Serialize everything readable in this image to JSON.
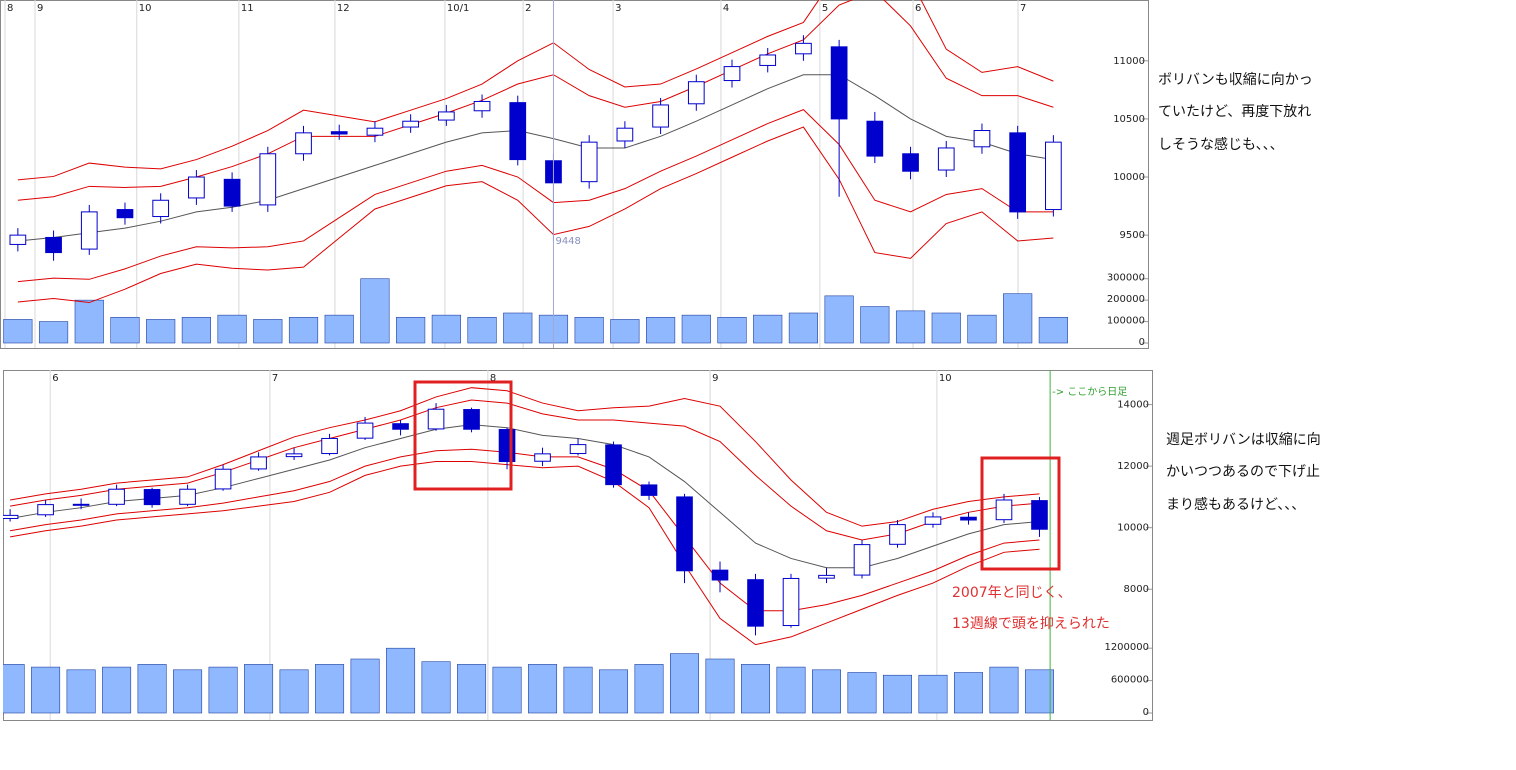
{
  "chart_data": [
    {
      "type": "candlestick",
      "xlim": [
        -0.5,
        31.65
      ],
      "xticks": [
        {
          "value": -0.36,
          "label": "8"
        },
        {
          "value": 0.48,
          "label": "9"
        },
        {
          "value": 3.33,
          "label": "10"
        },
        {
          "value": 6.19,
          "label": "11"
        },
        {
          "value": 8.88,
          "label": "12"
        },
        {
          "value": 11.96,
          "label": "10/1"
        },
        {
          "value": 14.15,
          "label": "2"
        },
        {
          "value": 16.67,
          "label": "3"
        },
        {
          "value": 19.69,
          "label": "4"
        },
        {
          "value": 22.46,
          "label": "5"
        },
        {
          "value": 25.07,
          "label": "6"
        },
        {
          "value": 28.01,
          "label": "7"
        }
      ],
      "ylim": [
        9200,
        11480
      ],
      "yticks": [
        9500,
        10000,
        10500,
        11000
      ],
      "volume_lim": [
        0,
        350000
      ],
      "volume_ticks": [
        0,
        100000,
        200000,
        300000
      ],
      "open": [
        9420,
        9480,
        9380,
        9720,
        9660,
        9820,
        9980,
        9760,
        10200,
        10390,
        10360,
        10430,
        10490,
        10570,
        10640,
        10140,
        9960,
        10310,
        10430,
        10630,
        10830,
        10960,
        11060,
        11120,
        10480,
        10200,
        10060,
        10260,
        10380,
        9720
      ],
      "high": [
        9560,
        9540,
        9760,
        9780,
        9860,
        10060,
        10040,
        10260,
        10440,
        10450,
        10480,
        10540,
        10620,
        10710,
        10700,
        10200,
        10360,
        10480,
        10680,
        10880,
        11010,
        11110,
        11220,
        11180,
        10560,
        10260,
        10310,
        10460,
        10440,
        10360
      ],
      "low": [
        9360,
        9280,
        9330,
        9590,
        9600,
        9760,
        9700,
        9700,
        10140,
        10320,
        10300,
        10380,
        10440,
        10510,
        10100,
        9448,
        9900,
        10250,
        10370,
        10570,
        10770,
        10900,
        11000,
        9830,
        10120,
        9980,
        10000,
        10200,
        9640,
        9660
      ],
      "close": [
        9500,
        9350,
        9700,
        9650,
        9800,
        10000,
        9750,
        10200,
        10380,
        10370,
        10420,
        10480,
        10560,
        10650,
        10150,
        9950,
        10300,
        10420,
        10620,
        10820,
        10950,
        11050,
        11150,
        10500,
        10180,
        10050,
        10250,
        10400,
        9700,
        10300
      ],
      "volume": [
        110000,
        100000,
        200000,
        120000,
        110000,
        120000,
        130000,
        110000,
        120000,
        130000,
        300000,
        120000,
        130000,
        120000,
        140000,
        130000,
        120000,
        110000,
        120000,
        130000,
        120000,
        130000,
        140000,
        220000,
        170000,
        150000,
        140000,
        130000,
        230000,
        120000
      ],
      "bands": [
        {
          "color": "#555555",
          "values": [
            9450,
            9480,
            9520,
            9560,
            9620,
            9700,
            9740,
            9800,
            9900,
            10000,
            10100,
            10200,
            10300,
            10380,
            10400,
            10330,
            10250,
            10250,
            10350,
            10480,
            10620,
            10760,
            10880,
            10880,
            10700,
            10500,
            10350,
            10300,
            10200,
            10150
          ]
        },
        {
          "color": "#dd0000",
          "values": [
            9800,
            9830,
            9920,
            9910,
            9920,
            10000,
            10090,
            10200,
            10350,
            10350,
            10350,
            10450,
            10550,
            10660,
            10800,
            10880,
            10700,
            10600,
            10650,
            10780,
            10920,
            11060,
            11180,
            11480,
            11600,
            11300,
            10850,
            10700,
            10700,
            10600
          ]
        },
        {
          "color": "#dd0000",
          "values": [
            9100,
            9130,
            9120,
            9210,
            9320,
            9400,
            9390,
            9400,
            9450,
            9650,
            9850,
            9950,
            10050,
            10100,
            10000,
            9780,
            9800,
            9900,
            10050,
            10180,
            10320,
            10460,
            10580,
            10280,
            9800,
            9700,
            9850,
            9900,
            9700,
            9700
          ]
        },
        {
          "color": "#dd0000",
          "values": [
            9975,
            10005,
            10120,
            10085,
            10070,
            10150,
            10265,
            10400,
            10575,
            10525,
            10475,
            10575,
            10675,
            10800,
            11000,
            11155,
            10925,
            10775,
            10800,
            10930,
            11070,
            11210,
            11330,
            11780,
            12050,
            11700,
            11100,
            10900,
            10950,
            10825
          ]
        },
        {
          "color": "#dd0000",
          "values": [
            8925,
            8955,
            8920,
            9035,
            9170,
            9250,
            9215,
            9200,
            9225,
            9475,
            9725,
            9825,
            9925,
            9960,
            9800,
            9505,
            9575,
            9725,
            9900,
            10030,
            10170,
            10310,
            10430,
            9980,
            9350,
            9300,
            9600,
            9700,
            9450,
            9475
          ]
        }
      ],
      "marker": {
        "x": 15,
        "label": 9448
      },
      "up_color": "#ffffff",
      "down_color": "#0000cc",
      "volume_color": "#8fb8ff",
      "grid": true
    },
    {
      "type": "candlestick",
      "xlim": [
        -0.2,
        32.17
      ],
      "xticks": [
        {
          "value": 1.13,
          "label": "6"
        },
        {
          "value": 7.32,
          "label": "7"
        },
        {
          "value": 13.46,
          "label": "8"
        },
        {
          "value": 19.72,
          "label": "9"
        },
        {
          "value": 26.11,
          "label": "10"
        }
      ],
      "ylim": [
        5700,
        14800
      ],
      "yticks": [
        8000,
        10000,
        12000,
        14000
      ],
      "volume_lim": [
        0,
        1500000
      ],
      "volume_ticks": [
        0,
        600000,
        1200000
      ],
      "open": [
        10300,
        10420,
        10760,
        10760,
        11240,
        10760,
        11260,
        11910,
        12310,
        12410,
        12910,
        13380,
        13210,
        13840,
        13190,
        12160,
        12410,
        12690,
        11390,
        11000,
        8620,
        8310,
        6820,
        8360,
        8460,
        9460,
        10110,
        10340,
        10260,
        10880
      ],
      "high": [
        10600,
        10900,
        10950,
        11400,
        11300,
        11400,
        12050,
        12450,
        12600,
        13050,
        13600,
        13500,
        14050,
        13900,
        13250,
        12600,
        12900,
        12800,
        11500,
        11100,
        8900,
        8500,
        8500,
        8700,
        9600,
        10250,
        10500,
        10500,
        11100,
        11000
      ],
      "low": [
        10200,
        10350,
        10600,
        10700,
        10650,
        10700,
        11200,
        11850,
        12200,
        12350,
        12850,
        13000,
        13150,
        13100,
        11900,
        12000,
        12350,
        11300,
        10900,
        8200,
        7900,
        6500,
        6750,
        8200,
        8350,
        9350,
        10000,
        10100,
        10150,
        9700
      ],
      "close": [
        10400,
        10750,
        10750,
        11250,
        10750,
        11250,
        11900,
        12300,
        12400,
        12900,
        13400,
        13200,
        13850,
        13200,
        12150,
        12400,
        12700,
        11400,
        11050,
        8600,
        8300,
        6800,
        8350,
        8450,
        9450,
        10100,
        10350,
        10250,
        10900,
        9950
      ],
      "volume": [
        900000,
        850000,
        800000,
        850000,
        900000,
        800000,
        850000,
        900000,
        800000,
        900000,
        1000000,
        1200000,
        950000,
        900000,
        850000,
        900000,
        850000,
        800000,
        900000,
        1100000,
        1000000,
        900000,
        850000,
        800000,
        750000,
        700000,
        700000,
        750000,
        850000,
        800000
      ],
      "bands": [
        {
          "color": "#555555",
          "values": [
            10300,
            10500,
            10650,
            10850,
            10950,
            11050,
            11300,
            11600,
            11900,
            12200,
            12600,
            12900,
            13200,
            13350,
            13250,
            13000,
            12900,
            12700,
            12300,
            11500,
            10500,
            9500,
            9000,
            8700,
            8700,
            9000,
            9400,
            9800,
            10100,
            10200
          ]
        },
        {
          "color": "#dd0000",
          "values": [
            10700,
            10900,
            11050,
            11250,
            11350,
            11450,
            11800,
            12200,
            12600,
            12900,
            13200,
            13500,
            13900,
            14150,
            14050,
            13700,
            13500,
            13500,
            13400,
            13300,
            12800,
            11700,
            10700,
            9900,
            9600,
            9800,
            10200,
            10500,
            10700,
            10800
          ]
        },
        {
          "color": "#dd0000",
          "values": [
            9900,
            10100,
            10250,
            10450,
            10550,
            10650,
            10800,
            11000,
            11200,
            11500,
            12000,
            12300,
            12500,
            12550,
            12450,
            12300,
            12300,
            11900,
            11200,
            9700,
            8200,
            7300,
            7300,
            7500,
            7800,
            8200,
            8600,
            9100,
            9500,
            9600
          ]
        },
        {
          "color": "#dd0000",
          "values": [
            10900,
            11100,
            11250,
            11450,
            11550,
            11650,
            12050,
            12500,
            12950,
            13250,
            13500,
            13800,
            14250,
            14550,
            14450,
            14050,
            13800,
            13900,
            13950,
            14200,
            13950,
            12800,
            11550,
            10500,
            10050,
            10200,
            10600,
            10850,
            11000,
            11100
          ]
        },
        {
          "color": "#dd0000",
          "values": [
            9700,
            9900,
            10050,
            10250,
            10350,
            10450,
            10550,
            10700,
            10850,
            11150,
            11700,
            12000,
            12150,
            12150,
            12050,
            11950,
            12000,
            11500,
            10650,
            8800,
            7050,
            6200,
            6450,
            6900,
            7350,
            7800,
            8200,
            8750,
            9200,
            9300
          ]
        }
      ],
      "switch_line": {
        "x": 29.3,
        "label": "-> ここから日足"
      },
      "annotation_lines": [
        "2007年と同じく、",
        "13週線で頭を抑えられた"
      ],
      "up_color": "#ffffff",
      "down_color": "#0000cc",
      "volume_color": "#8fb8ff",
      "grid": true
    }
  ],
  "notes": [
    [
      "ボリバンも収縮に向かっ",
      "ていたけど、再度下放れ",
      "しそうな感じも、、、"
    ],
    [
      "週足ボリバンは収縮に向",
      "かいつつあるので下げ止",
      "まり感もあるけど、、、"
    ]
  ]
}
